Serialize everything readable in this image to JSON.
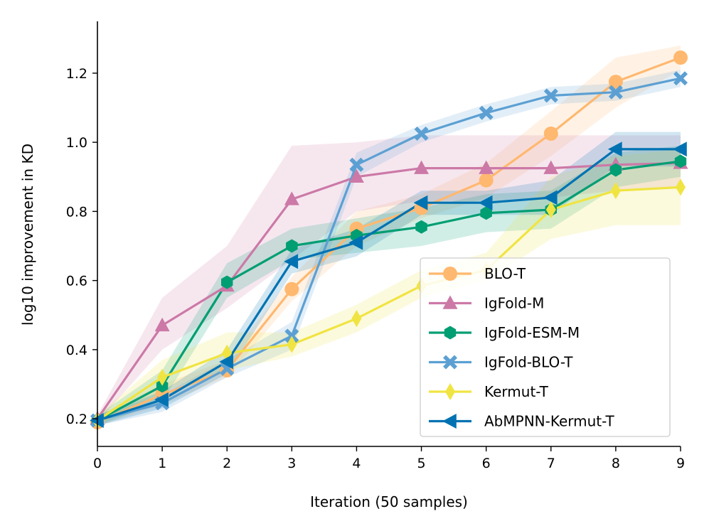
{
  "chart_data": {
    "type": "line",
    "title": "",
    "xlabel": "Iteration (50 samples)",
    "ylabel": "log10 improvement in KD",
    "xlim": [
      0,
      9
    ],
    "ylim": [
      0.12,
      1.35
    ],
    "xticks": [
      0,
      1,
      2,
      3,
      4,
      5,
      6,
      7,
      8,
      9
    ],
    "yticks": [
      0.2,
      0.4,
      0.6,
      0.8,
      1.0,
      1.2
    ],
    "ytick_labels": [
      "0.2",
      "0.4",
      "0.6",
      "0.8",
      "1.0",
      "1.2"
    ],
    "legend_position": "lower-right",
    "x": [
      0,
      1,
      2,
      3,
      4,
      5,
      6,
      7,
      8,
      9
    ],
    "series": [
      {
        "name": "BLO-T",
        "color": "#ffb86f",
        "marker": "circle",
        "values": [
          0.19,
          0.27,
          0.34,
          0.575,
          0.75,
          0.81,
          0.89,
          1.025,
          1.175,
          1.245
        ],
        "lower": [
          0.18,
          0.24,
          0.32,
          0.54,
          0.7,
          0.78,
          0.84,
          0.96,
          1.1,
          1.21
        ],
        "upper": [
          0.21,
          0.3,
          0.37,
          0.61,
          0.8,
          0.85,
          0.94,
          1.09,
          1.245,
          1.28
        ]
      },
      {
        "name": "IgFold-M",
        "color": "#cc79a7",
        "marker": "triangle-up",
        "values": [
          0.2,
          0.47,
          0.585,
          0.835,
          0.9,
          0.925,
          0.925,
          0.925,
          0.935,
          0.94
        ],
        "lower": [
          0.19,
          0.4,
          0.52,
          0.66,
          0.8,
          0.83,
          0.83,
          0.84,
          0.86,
          0.87
        ],
        "upper": [
          0.21,
          0.55,
          0.7,
          0.99,
          1.0,
          1.02,
          1.02,
          1.02,
          1.02,
          1.02
        ]
      },
      {
        "name": "IgFold-ESM-M",
        "color": "#009e73",
        "marker": "hexagon",
        "values": [
          0.195,
          0.295,
          0.595,
          0.7,
          0.73,
          0.755,
          0.795,
          0.805,
          0.92,
          0.945
        ],
        "lower": [
          0.18,
          0.25,
          0.55,
          0.66,
          0.68,
          0.7,
          0.74,
          0.75,
          0.87,
          0.9
        ],
        "upper": [
          0.21,
          0.34,
          0.65,
          0.75,
          0.78,
          0.81,
          0.85,
          0.86,
          0.97,
          0.99
        ]
      },
      {
        "name": "IgFold-BLO-T",
        "color": "#5ca0d3",
        "marker": "x-filled",
        "values": [
          0.195,
          0.245,
          0.345,
          0.44,
          0.935,
          1.025,
          1.085,
          1.135,
          1.145,
          1.185
        ],
        "lower": [
          0.18,
          0.22,
          0.32,
          0.4,
          0.9,
          1.0,
          1.06,
          1.11,
          1.12,
          1.16
        ],
        "upper": [
          0.21,
          0.27,
          0.37,
          0.48,
          0.97,
          1.05,
          1.11,
          1.16,
          1.17,
          1.21
        ]
      },
      {
        "name": "Kermut-T",
        "color": "#f0e442",
        "marker": "diamond-thin",
        "values": [
          0.195,
          0.32,
          0.39,
          0.415,
          0.49,
          0.585,
          0.63,
          0.805,
          0.86,
          0.87
        ],
        "lower": [
          0.18,
          0.28,
          0.34,
          0.38,
          0.45,
          0.55,
          0.6,
          0.72,
          0.76,
          0.76
        ],
        "upper": [
          0.21,
          0.37,
          0.45,
          0.45,
          0.53,
          0.63,
          0.68,
          0.9,
          0.96,
          0.98
        ]
      },
      {
        "name": "AbMPNN-Kermut-T",
        "color": "#0072b2",
        "marker": "triangle-left",
        "values": [
          0.195,
          0.255,
          0.365,
          0.655,
          0.71,
          0.825,
          0.825,
          0.84,
          0.98,
          0.98
        ],
        "lower": [
          0.18,
          0.23,
          0.33,
          0.62,
          0.67,
          0.79,
          0.79,
          0.79,
          0.93,
          0.93
        ],
        "upper": [
          0.21,
          0.28,
          0.4,
          0.69,
          0.75,
          0.86,
          0.86,
          0.89,
          1.03,
          1.03
        ]
      }
    ]
  }
}
